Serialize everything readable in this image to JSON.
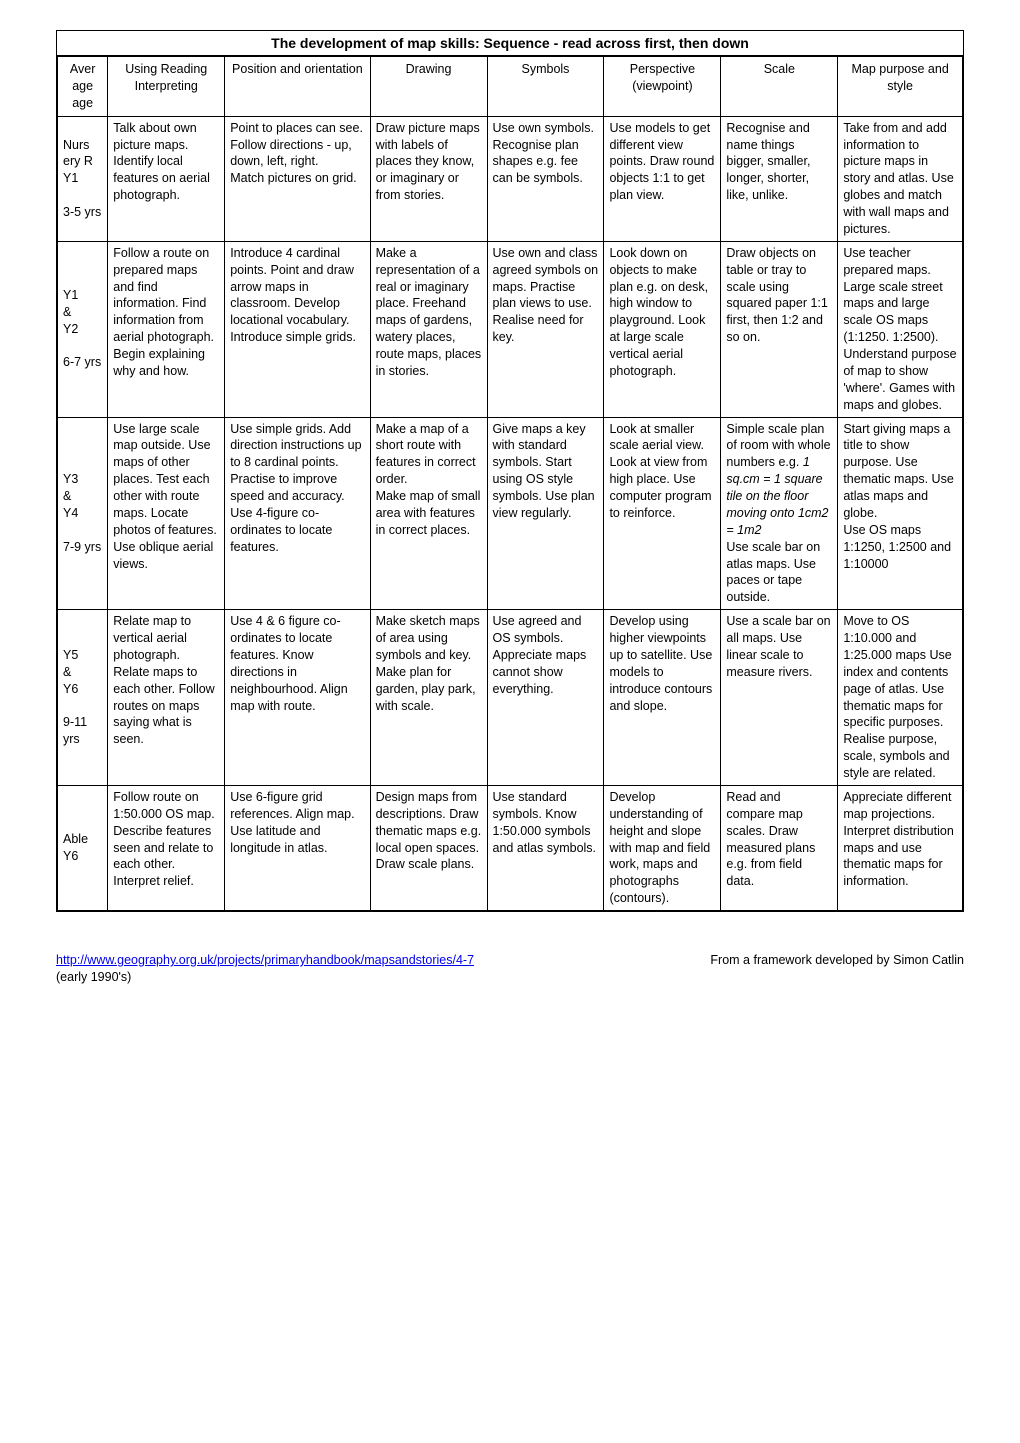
{
  "title": "The development of map skills: Sequence - read across first, then down",
  "columns": [
    "Aver age age",
    "Using Reading Interpreting",
    "Position and orientation",
    "Drawing",
    "Symbols",
    "Perspective (viewpoint)",
    "Scale",
    "Map purpose and style"
  ],
  "col_widths_class": [
    "col-age",
    "col-reading",
    "col-position",
    "col-drawing",
    "col-symbols",
    "col-perspective",
    "col-scale",
    "col-purpose"
  ],
  "rows": [
    {
      "age": "Nurs ery R\nY1\n\n3-5 yrs",
      "cells": [
        "Talk about own picture maps.  Identify local features on aerial photograph.",
        "Point to places can see.\nFollow directions - up, down, left, right.\nMatch pictures on grid.",
        "Draw picture maps with labels of places they know, or imaginary or from stories.",
        "Use own symbols.  Recognise plan shapes e.g. fee can be symbols.",
        "Use models to get different view points.  Draw round objects 1:1 to get plan view.",
        "Recognise and name things bigger, smaller, longer, shorter, like, unlike.",
        "Take from and add information to picture maps in story and atlas.  Use globes and match with wall maps and pictures."
      ]
    },
    {
      "age": "Y1\n&\nY2\n\n6-7 yrs",
      "cells": [
        "Follow a route on prepared maps and find information.  Find information from aerial photograph.  Begin explaining why and how.",
        "Introduce 4 cardinal points.  Point and draw arrow maps in classroom.  Develop locational vocabulary.  Introduce simple grids.",
        "Make a representation of a real or imaginary place.  Freehand maps of gardens, watery places, route maps, places in stories.",
        "Use own and class agreed symbols on maps.  Practise plan views to use.  Realise need for key.",
        "Look down on objects to make plan e.g. on desk, high window to playground.  Look at large scale vertical aerial photograph.",
        "Draw objects on table or tray to scale using squared paper 1:1 first, then 1:2 and so on.",
        "Use teacher prepared maps.  Large scale street maps and large scale OS maps (1:1250. 1:2500).  Understand purpose of map to show 'where'.  Games with maps and globes."
      ]
    },
    {
      "age": "Y3\n&\nY4\n\n7-9 yrs",
      "cells": [
        "Use large scale map outside.  Use maps of other places.  Test each other with route maps.  Locate photos of features.  Use oblique aerial views.",
        "Use simple grids.  Add direction instructions up to 8 cardinal points.  Practise to improve speed and accuracy.  Use 4-figure co-ordinates to locate features.",
        "Make a map of a short route with features in correct order.\nMake map of small area with features in correct places.",
        "Give maps a key with standard symbols.  Start using OS style symbols.  Use plan view regularly.",
        "Look at smaller scale aerial view.  Look at view from high place.  Use computer program to reinforce.",
        "Simple scale plan of room with whole numbers e.g. <i>1 sq.cm = 1 square tile on the floor moving onto 1cm2 = 1m2</i>\nUse scale bar on atlas maps.  Use paces or tape outside.",
        "Start giving maps a title to show purpose.  Use thematic maps.  Use atlas maps and globe.\nUse OS maps 1:1250, 1:2500 and 1:10000"
      ]
    },
    {
      "age": "Y5\n&\nY6\n\n9-11 yrs",
      "cells": [
        "Relate map to vertical aerial photograph.  Relate maps to each other.  Follow routes on maps saying what is seen.",
        "Use 4 & 6 figure co-ordinates to locate features.  Know directions in neighbourhood.  Align map with route.",
        "Make sketch maps of area using symbols and key.\nMake plan for garden, play park, with scale.",
        "Use agreed and OS symbols.  Appreciate maps cannot show everything.",
        "Develop using higher viewpoints up to satellite.  Use models to introduce contours and slope.",
        "Use a scale bar on all maps.  Use linear scale to measure rivers.",
        "Move to OS 1:10.000 and 1:25.000 maps Use index and contents page of atlas.  Use thematic maps for specific purposes.  Realise purpose, scale, symbols and style are related."
      ]
    },
    {
      "age": "Able Y6",
      "cells": [
        "Follow route on 1:50.000 OS map.  Describe features seen and relate to each other.  Interpret relief.",
        "Use 6-figure grid references.  Align map.\nUse latitude and longitude in atlas.",
        "Design maps from descriptions.  Draw thematic maps e.g. local open spaces.  Draw scale plans.",
        "Use standard symbols.  Know 1:50.000 symbols and atlas symbols.",
        "Develop understanding of height and slope with map and field work, maps and photographs (contours).",
        "Read and compare map scales.  Draw measured plans e.g. from field data.",
        "Appreciate different map projections.  Interpret distribution maps and use thematic maps for information."
      ]
    }
  ],
  "footer": {
    "url_text": "http://www.geography.org.uk/projects/primaryhandbook/mapsandstories/4-7",
    "right_text": "From a framework developed by Simon Catlin",
    "below_text": "(early 1990's)"
  }
}
